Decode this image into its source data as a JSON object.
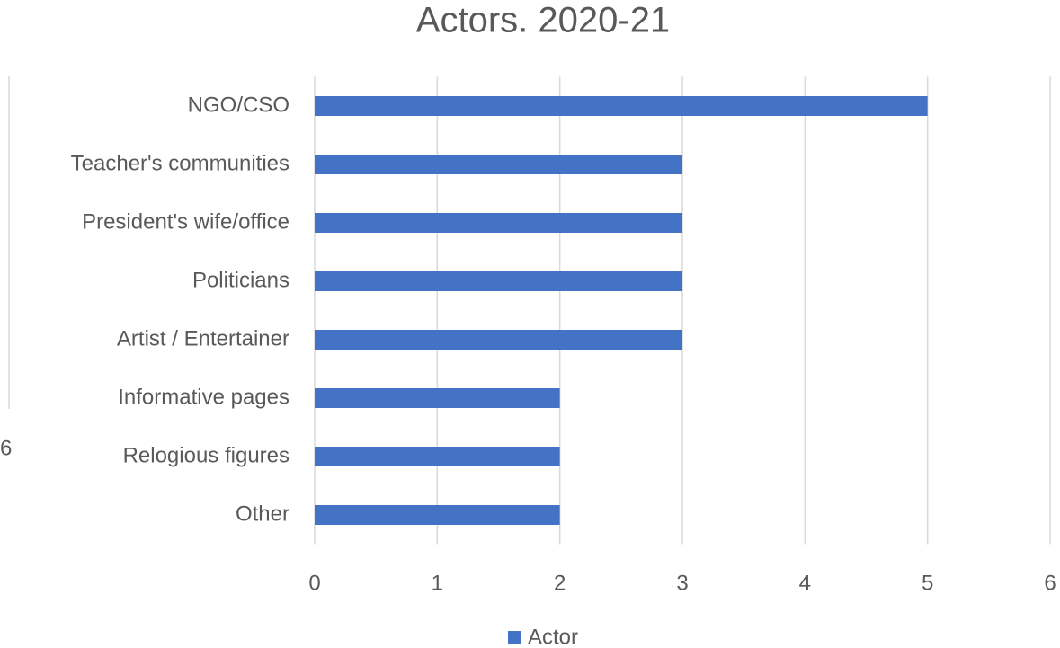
{
  "chart_data": {
    "type": "bar",
    "orientation": "horizontal",
    "title": "Actors. 2020-21",
    "categories": [
      "NGO/CSO",
      "Teacher's communities",
      "President's wife/office",
      "Politicians",
      "Artist / Entertainer",
      "Informative pages",
      "Relogious figures",
      "Other"
    ],
    "series": [
      {
        "name": "Actor",
        "color": "#4472c4",
        "values": [
          5,
          3,
          3,
          3,
          3,
          2,
          2,
          2
        ]
      }
    ],
    "xlim": [
      0,
      6
    ],
    "xticks": [
      0,
      1,
      2,
      3,
      4,
      5,
      6
    ],
    "grid": true,
    "legend": "bottom",
    "annotations": [
      "6"
    ]
  }
}
